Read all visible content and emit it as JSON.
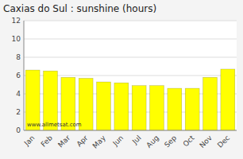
{
  "chart_data": {
    "type": "bar",
    "title": "Caxias do Sul : sunshine (hours)",
    "categories": [
      "Jan",
      "Feb",
      "Mar",
      "Apr",
      "May",
      "Jun",
      "Jul",
      "Aug",
      "Sep",
      "Oct",
      "Nov",
      "Dec"
    ],
    "values": [
      6.6,
      6.5,
      5.8,
      5.7,
      5.3,
      5.2,
      4.9,
      4.9,
      4.6,
      4.6,
      5.8,
      6.7
    ],
    "color": "#ffff00",
    "ylim": [
      0,
      12
    ],
    "yticks": [
      0,
      2,
      4,
      6,
      8,
      10,
      12
    ],
    "grid": true,
    "annotations": [
      "www.allmetsat.com"
    ]
  }
}
